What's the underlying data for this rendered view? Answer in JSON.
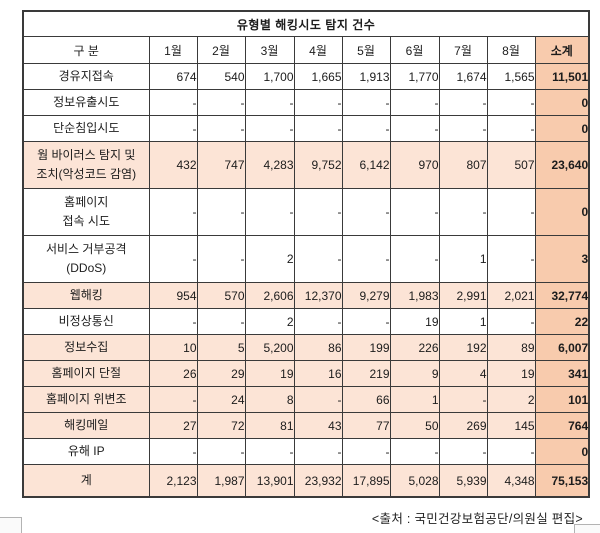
{
  "table": {
    "title": "유형별 해킹시도 탐지 건수",
    "columns": [
      "구  분",
      "1월",
      "2월",
      "3월",
      "4월",
      "5월",
      "6월",
      "7월",
      "8월",
      "소계"
    ],
    "rows": [
      {
        "label": "경유지접속",
        "values": [
          "674",
          "540",
          "1,700",
          "1,665",
          "1,913",
          "1,770",
          "1,674",
          "1,565"
        ],
        "subtotal": "11,501",
        "highlight": false,
        "tall": false
      },
      {
        "label": "정보유출시도",
        "values": [
          "-",
          "-",
          "-",
          "-",
          "-",
          "-",
          "-",
          "-"
        ],
        "subtotal": "0",
        "highlight": false,
        "tall": false
      },
      {
        "label": "단순침입시도",
        "values": [
          "-",
          "-",
          "-",
          "-",
          "-",
          "-",
          "-",
          "-"
        ],
        "subtotal": "0",
        "highlight": false,
        "tall": false
      },
      {
        "label": "웜 바이러스 탐지 및\n조치(악성코드 감염)",
        "values": [
          "432",
          "747",
          "4,283",
          "9,752",
          "6,142",
          "970",
          "807",
          "507"
        ],
        "subtotal": "23,640",
        "highlight": true,
        "tall": true
      },
      {
        "label": "홈페이지\n접속 시도",
        "values": [
          "-",
          "-",
          "-",
          "-",
          "-",
          "-",
          "-",
          "-"
        ],
        "subtotal": "0",
        "highlight": false,
        "tall": true
      },
      {
        "label": "서비스 거부공격\n(DDoS)",
        "values": [
          "-",
          "-",
          "2",
          "-",
          "-",
          "-",
          "1",
          "-"
        ],
        "subtotal": "3",
        "highlight": false,
        "tall": true
      },
      {
        "label": "웹해킹",
        "values": [
          "954",
          "570",
          "2,606",
          "12,370",
          "9,279",
          "1,983",
          "2,991",
          "2,021"
        ],
        "subtotal": "32,774",
        "highlight": true,
        "tall": false
      },
      {
        "label": "비정상통신",
        "values": [
          "-",
          "-",
          "2",
          "-",
          "-",
          "19",
          "1",
          "-"
        ],
        "subtotal": "22",
        "highlight": false,
        "tall": false
      },
      {
        "label": "정보수집",
        "values": [
          "10",
          "5",
          "5,200",
          "86",
          "199",
          "226",
          "192",
          "89"
        ],
        "subtotal": "6,007",
        "highlight": true,
        "tall": false
      },
      {
        "label": "홈페이지 단절",
        "values": [
          "26",
          "29",
          "19",
          "16",
          "219",
          "9",
          "4",
          "19"
        ],
        "subtotal": "341",
        "highlight": true,
        "tall": false
      },
      {
        "label": "홈페이지 위변조",
        "values": [
          "-",
          "24",
          "8",
          "-",
          "66",
          "1",
          "-",
          "2"
        ],
        "subtotal": "101",
        "highlight": true,
        "tall": false
      },
      {
        "label": "해킹메일",
        "values": [
          "27",
          "72",
          "81",
          "43",
          "77",
          "50",
          "269",
          "145"
        ],
        "subtotal": "764",
        "highlight": true,
        "tall": false
      },
      {
        "label": "유해 IP",
        "values": [
          "-",
          "-",
          "-",
          "-",
          "-",
          "-",
          "-",
          "-"
        ],
        "subtotal": "0",
        "highlight": false,
        "tall": false
      },
      {
        "label": "계",
        "values": [
          "2,123",
          "1,987",
          "13,901",
          "23,932",
          "17,895",
          "5,028",
          "5,939",
          "4,348"
        ],
        "subtotal": "75,153",
        "highlight": true,
        "tall": false,
        "last": true,
        "subtotal_boxed": true
      }
    ]
  },
  "footer": {
    "source": "<출처 : 국민건강보험공단/의원실 편집>"
  },
  "colors": {
    "row_highlight": "#FCE4D6",
    "subtotal_column": "#F8CBAD",
    "accent_box_border": "#ED7020",
    "grid_border": "#3a3a3a"
  }
}
